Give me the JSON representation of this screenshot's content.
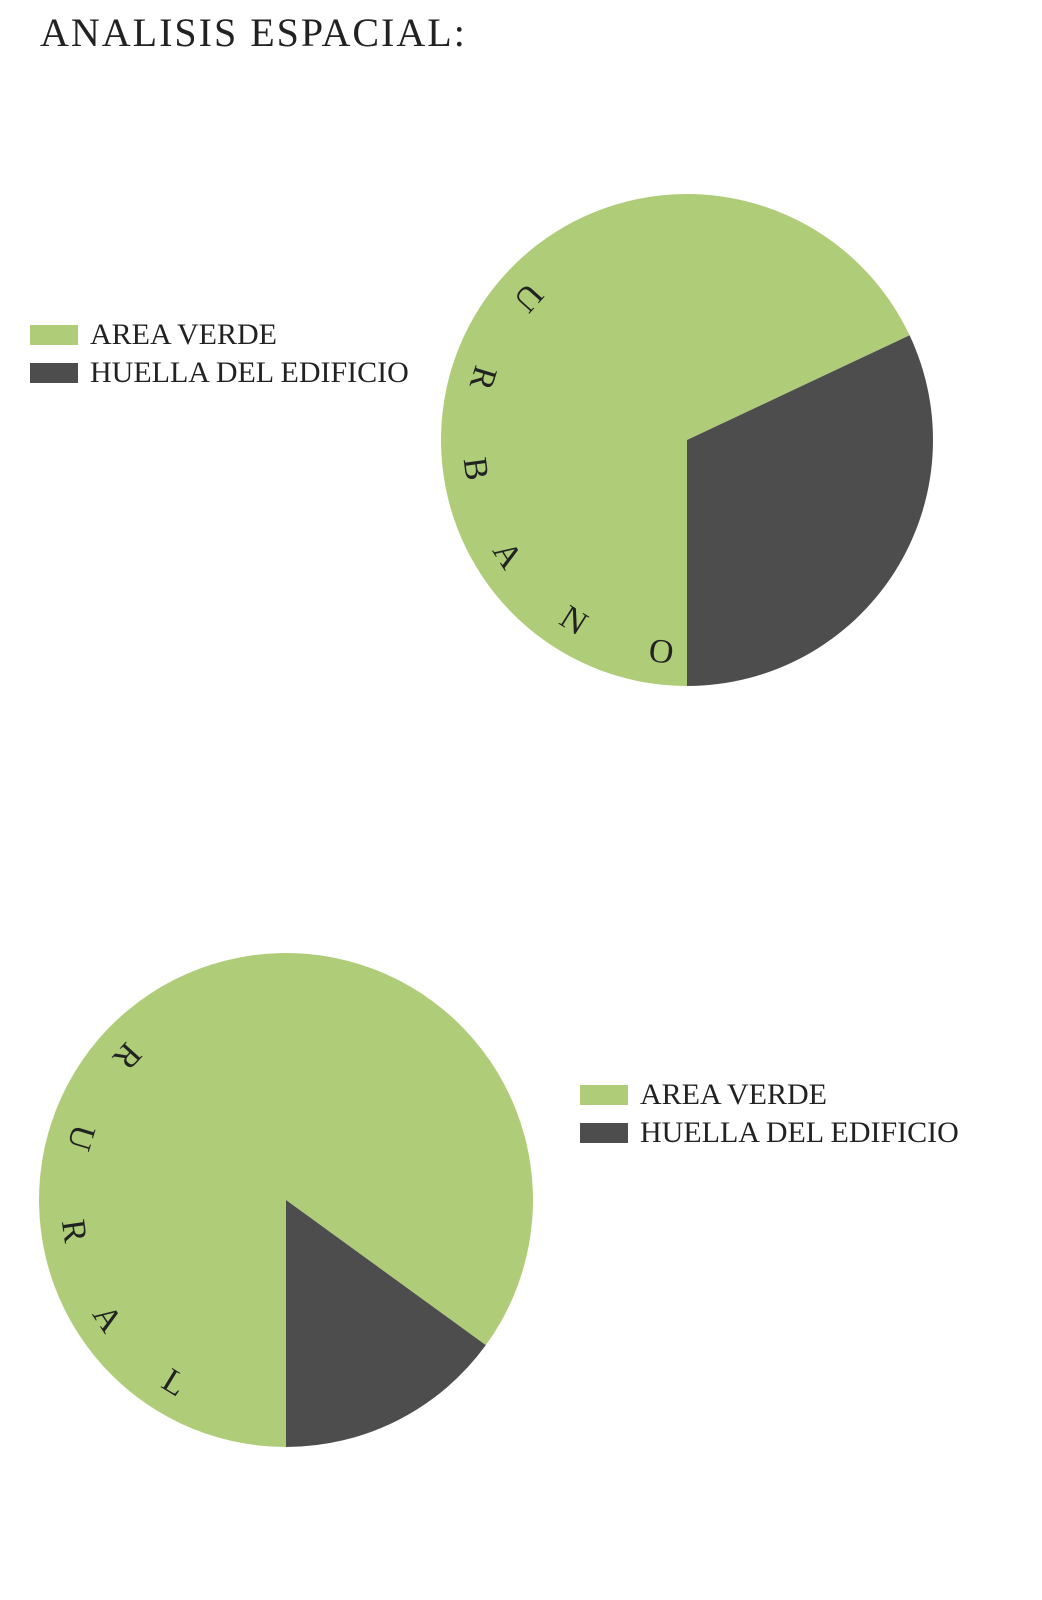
{
  "title": "ANALISIS ESPACIAL:",
  "chart_data": [
    {
      "type": "pie",
      "label": "URBANO",
      "categories": [
        "AREA VERDE",
        "HUELLA DEL EDIFICIO"
      ],
      "values": [
        68,
        32
      ],
      "colors": [
        "#afcd78",
        "#4d4d4d"
      ],
      "legend": "left"
    },
    {
      "type": "pie",
      "label": "RURAL",
      "categories": [
        "AREA VERDE",
        "HUELLA DEL EDIFICIO"
      ],
      "values": [
        85,
        15
      ],
      "colors": [
        "#afcd78",
        "#4d4d4d"
      ],
      "legend": "right"
    }
  ]
}
